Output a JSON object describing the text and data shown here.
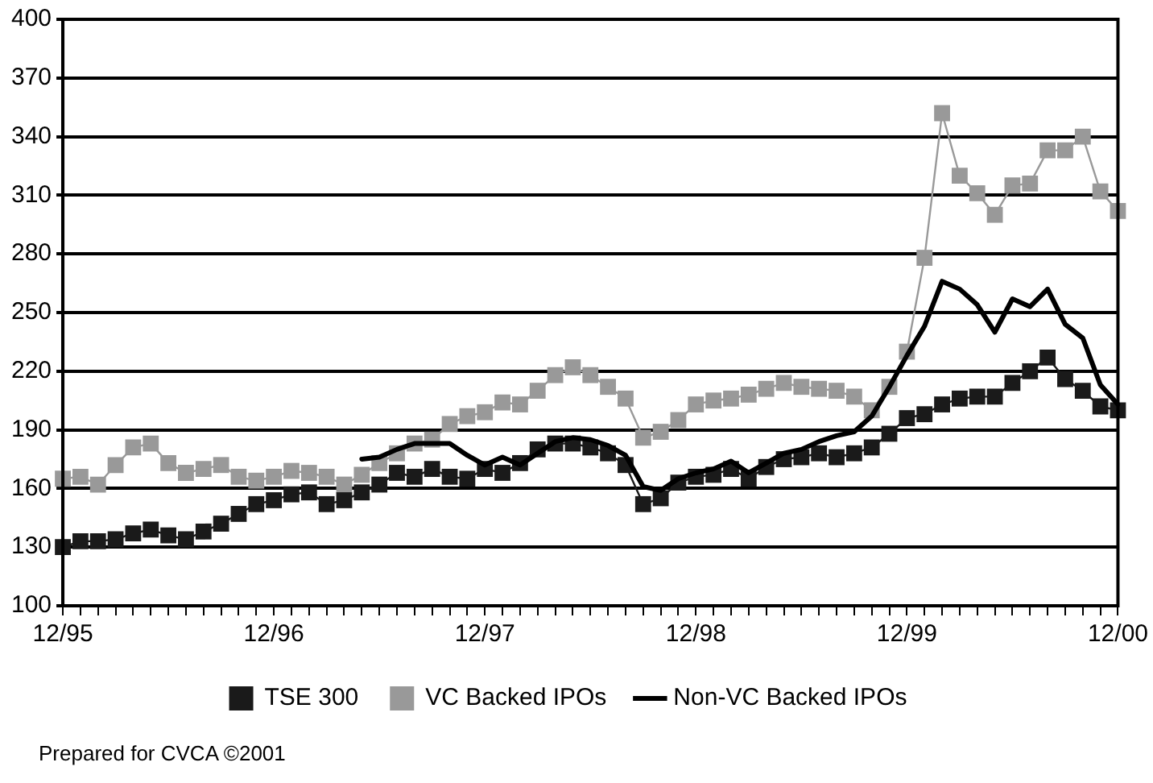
{
  "chart_data": {
    "type": "line",
    "categories": [
      "12/95",
      null,
      null,
      null,
      null,
      null,
      null,
      null,
      null,
      null,
      null,
      null,
      "12/96",
      null,
      null,
      null,
      null,
      null,
      null,
      null,
      null,
      null,
      null,
      null,
      "12/97",
      null,
      null,
      null,
      null,
      null,
      null,
      null,
      null,
      null,
      null,
      null,
      "12/98",
      null,
      null,
      null,
      null,
      null,
      null,
      null,
      null,
      null,
      null,
      null,
      "12/99",
      null,
      null,
      null,
      null,
      null,
      null,
      null,
      null,
      null,
      null,
      null,
      "12/00"
    ],
    "series": [
      {
        "name": "TSE 300",
        "color": "#1a1a1a",
        "marker": "square",
        "values": [
          130,
          133,
          133,
          134,
          137,
          139,
          136,
          134,
          138,
          142,
          147,
          152,
          154,
          157,
          158,
          152,
          154,
          158,
          162,
          168,
          166,
          170,
          166,
          165,
          170,
          168,
          173,
          180,
          183,
          183,
          181,
          178,
          172,
          152,
          155,
          163,
          166,
          167,
          170,
          165,
          171,
          175,
          176,
          178,
          176,
          178,
          181,
          188,
          196,
          198,
          203,
          206,
          207,
          207,
          214,
          220,
          227,
          216,
          210,
          202,
          200
        ]
      },
      {
        "name": "VC Backed IPOs",
        "color": "#999999",
        "marker": "square",
        "values": [
          165,
          166,
          162,
          172,
          181,
          183,
          173,
          168,
          170,
          172,
          166,
          164,
          166,
          169,
          168,
          166,
          162,
          167,
          173,
          178,
          183,
          185,
          193,
          197,
          199,
          204,
          203,
          210,
          218,
          222,
          218,
          212,
          206,
          186,
          189,
          195,
          203,
          205,
          206,
          208,
          211,
          214,
          212,
          211,
          210,
          207,
          200,
          212,
          230,
          278,
          352,
          320,
          311,
          300,
          315,
          316,
          333,
          333,
          340,
          312,
          302
        ]
      },
      {
        "name": "Non-VC Backed IPOs",
        "color": "#000000",
        "marker": "none",
        "values": [
          null,
          null,
          null,
          null,
          null,
          null,
          null,
          null,
          null,
          null,
          null,
          null,
          null,
          null,
          null,
          null,
          null,
          175,
          176,
          180,
          183,
          183,
          183,
          177,
          172,
          176,
          172,
          178,
          184,
          186,
          185,
          182,
          177,
          161,
          159,
          165,
          168,
          170,
          174,
          168,
          173,
          178,
          180,
          184,
          187,
          189,
          197,
          212,
          228,
          243,
          266,
          262,
          254,
          240,
          257,
          253,
          262,
          244,
          237,
          213,
          203
        ]
      }
    ],
    "ylim": [
      100,
      400
    ],
    "yticks": [
      100,
      130,
      160,
      190,
      220,
      250,
      280,
      310,
      340,
      370,
      400
    ],
    "grid": "y",
    "legend": "bottom",
    "annotations": [
      "Prepared for CVCA ©2001"
    ]
  }
}
